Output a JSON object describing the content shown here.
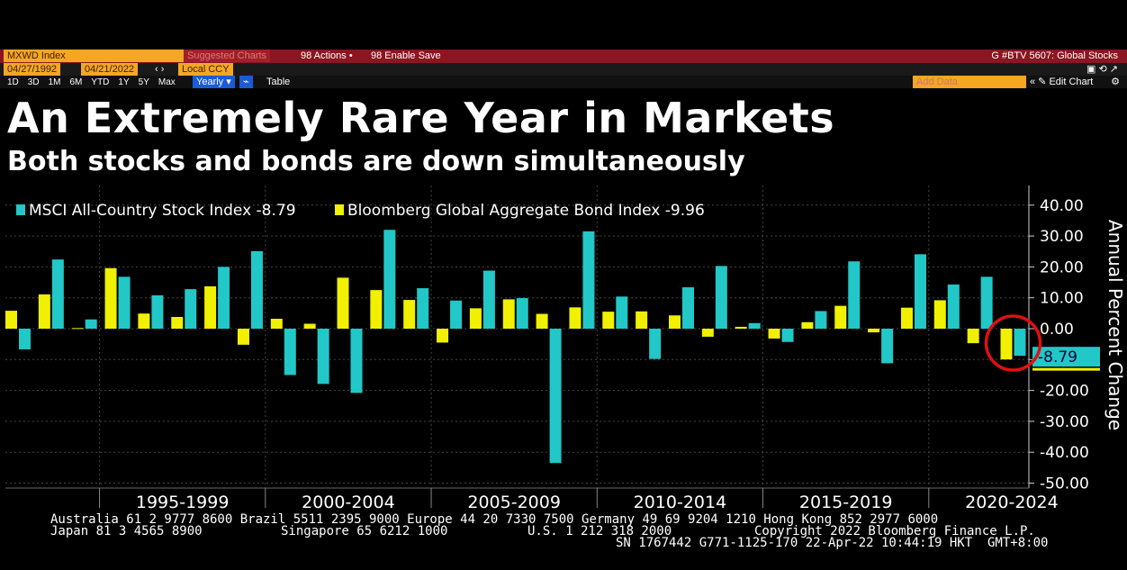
{
  "toolbar": {
    "security": "MXWD Index",
    "suggested": "Suggested Charts",
    "actions": "98 Actions •",
    "enable_save": "98 Enable Save",
    "right_title": "G #BTV 5607: Global Stocks",
    "start_date": "04/27/1992",
    "end_date": "04/21/2022",
    "currency": "Local CCY",
    "periods": [
      "1D",
      "3D",
      "1M",
      "6M",
      "YTD",
      "1Y",
      "5Y",
      "Max"
    ],
    "frequency": "Yearly ▾",
    "table": "Table",
    "add_data": "Add Data",
    "edit_chart": "« ✎ Edit Chart"
  },
  "title": "An Extremely Rare Year in Markets",
  "subtitle": "Both stocks and bonds are down simultaneously",
  "colors": {
    "stock": "#22c7c7",
    "bond": "#f0f000",
    "highlight": "#e01010"
  },
  "chart_data": {
    "type": "bar",
    "categories": [
      "1992",
      "1993",
      "1994",
      "1995",
      "1996",
      "1997",
      "1998",
      "1999",
      "2000",
      "2001",
      "2002",
      "2003",
      "2004",
      "2005",
      "2006",
      "2007",
      "2008",
      "2009",
      "2010",
      "2011",
      "2012",
      "2013",
      "2014",
      "2015",
      "2016",
      "2017",
      "2018",
      "2019",
      "2020",
      "2021",
      "2022"
    ],
    "series": [
      {
        "name": "Bloomberg Global Aggregate Bond Index -9.96",
        "values": [
          5.8,
          11.1,
          0.2,
          19.6,
          4.9,
          3.8,
          13.7,
          -5.2,
          3.2,
          1.6,
          16.5,
          12.5,
          9.3,
          -4.5,
          6.6,
          9.5,
          4.8,
          6.9,
          5.5,
          5.6,
          4.3,
          -2.6,
          0.6,
          -3.2,
          2.1,
          7.4,
          -1.2,
          6.8,
          9.2,
          -4.7,
          -9.96
        ]
      },
      {
        "name": "MSCI All-Country Stock Index -8.79",
        "values": [
          -6.7,
          22.4,
          3.0,
          16.8,
          10.8,
          12.8,
          20.0,
          25.1,
          -15.0,
          -17.9,
          -20.8,
          32.0,
          13.1,
          9.1,
          18.8,
          9.9,
          -43.5,
          31.5,
          10.4,
          -9.8,
          13.4,
          20.3,
          1.8,
          -4.3,
          5.7,
          21.8,
          -11.2,
          24.1,
          14.3,
          16.8,
          -8.79
        ]
      }
    ],
    "legend": [
      "MSCI All-Country Stock Index -8.79",
      "Bloomberg Global Aggregate Bond Index -9.96"
    ],
    "legend_position": "top-left",
    "x_ticks": [
      "1995-1999",
      "2000-2004",
      "2005-2009",
      "2010-2014",
      "2015-2019",
      "2020-2024"
    ],
    "y_ticks": [
      "40.00",
      "30.00",
      "20.00",
      "10.00",
      "0.00",
      "-10.00",
      "-20.00",
      "-30.00",
      "-40.00",
      "-50.00"
    ],
    "ylabel": "Annual Percent Change",
    "ylim": [
      -50,
      42
    ],
    "last_value_label": "-8.79",
    "grid": true
  },
  "footer": {
    "line1": "Australia 61 2 9777 8600 Brazil 5511 2395 9000 Europe 44 20 7330 7500 Germany 49 69 9204 1210 Hong Kong 852 2977 6000",
    "line2a": "Japan 81 3 4565 8900",
    "line2b": "Singapore 65 6212 1000",
    "line2c": "U.S. 1 212 318 2000",
    "line2d": "Copyright 2022 Bloomberg Finance L.P.",
    "line3": "SN 1767442 G771-1125-170 22-Apr-22 10:44:19 HKT  GMT+8:00"
  }
}
